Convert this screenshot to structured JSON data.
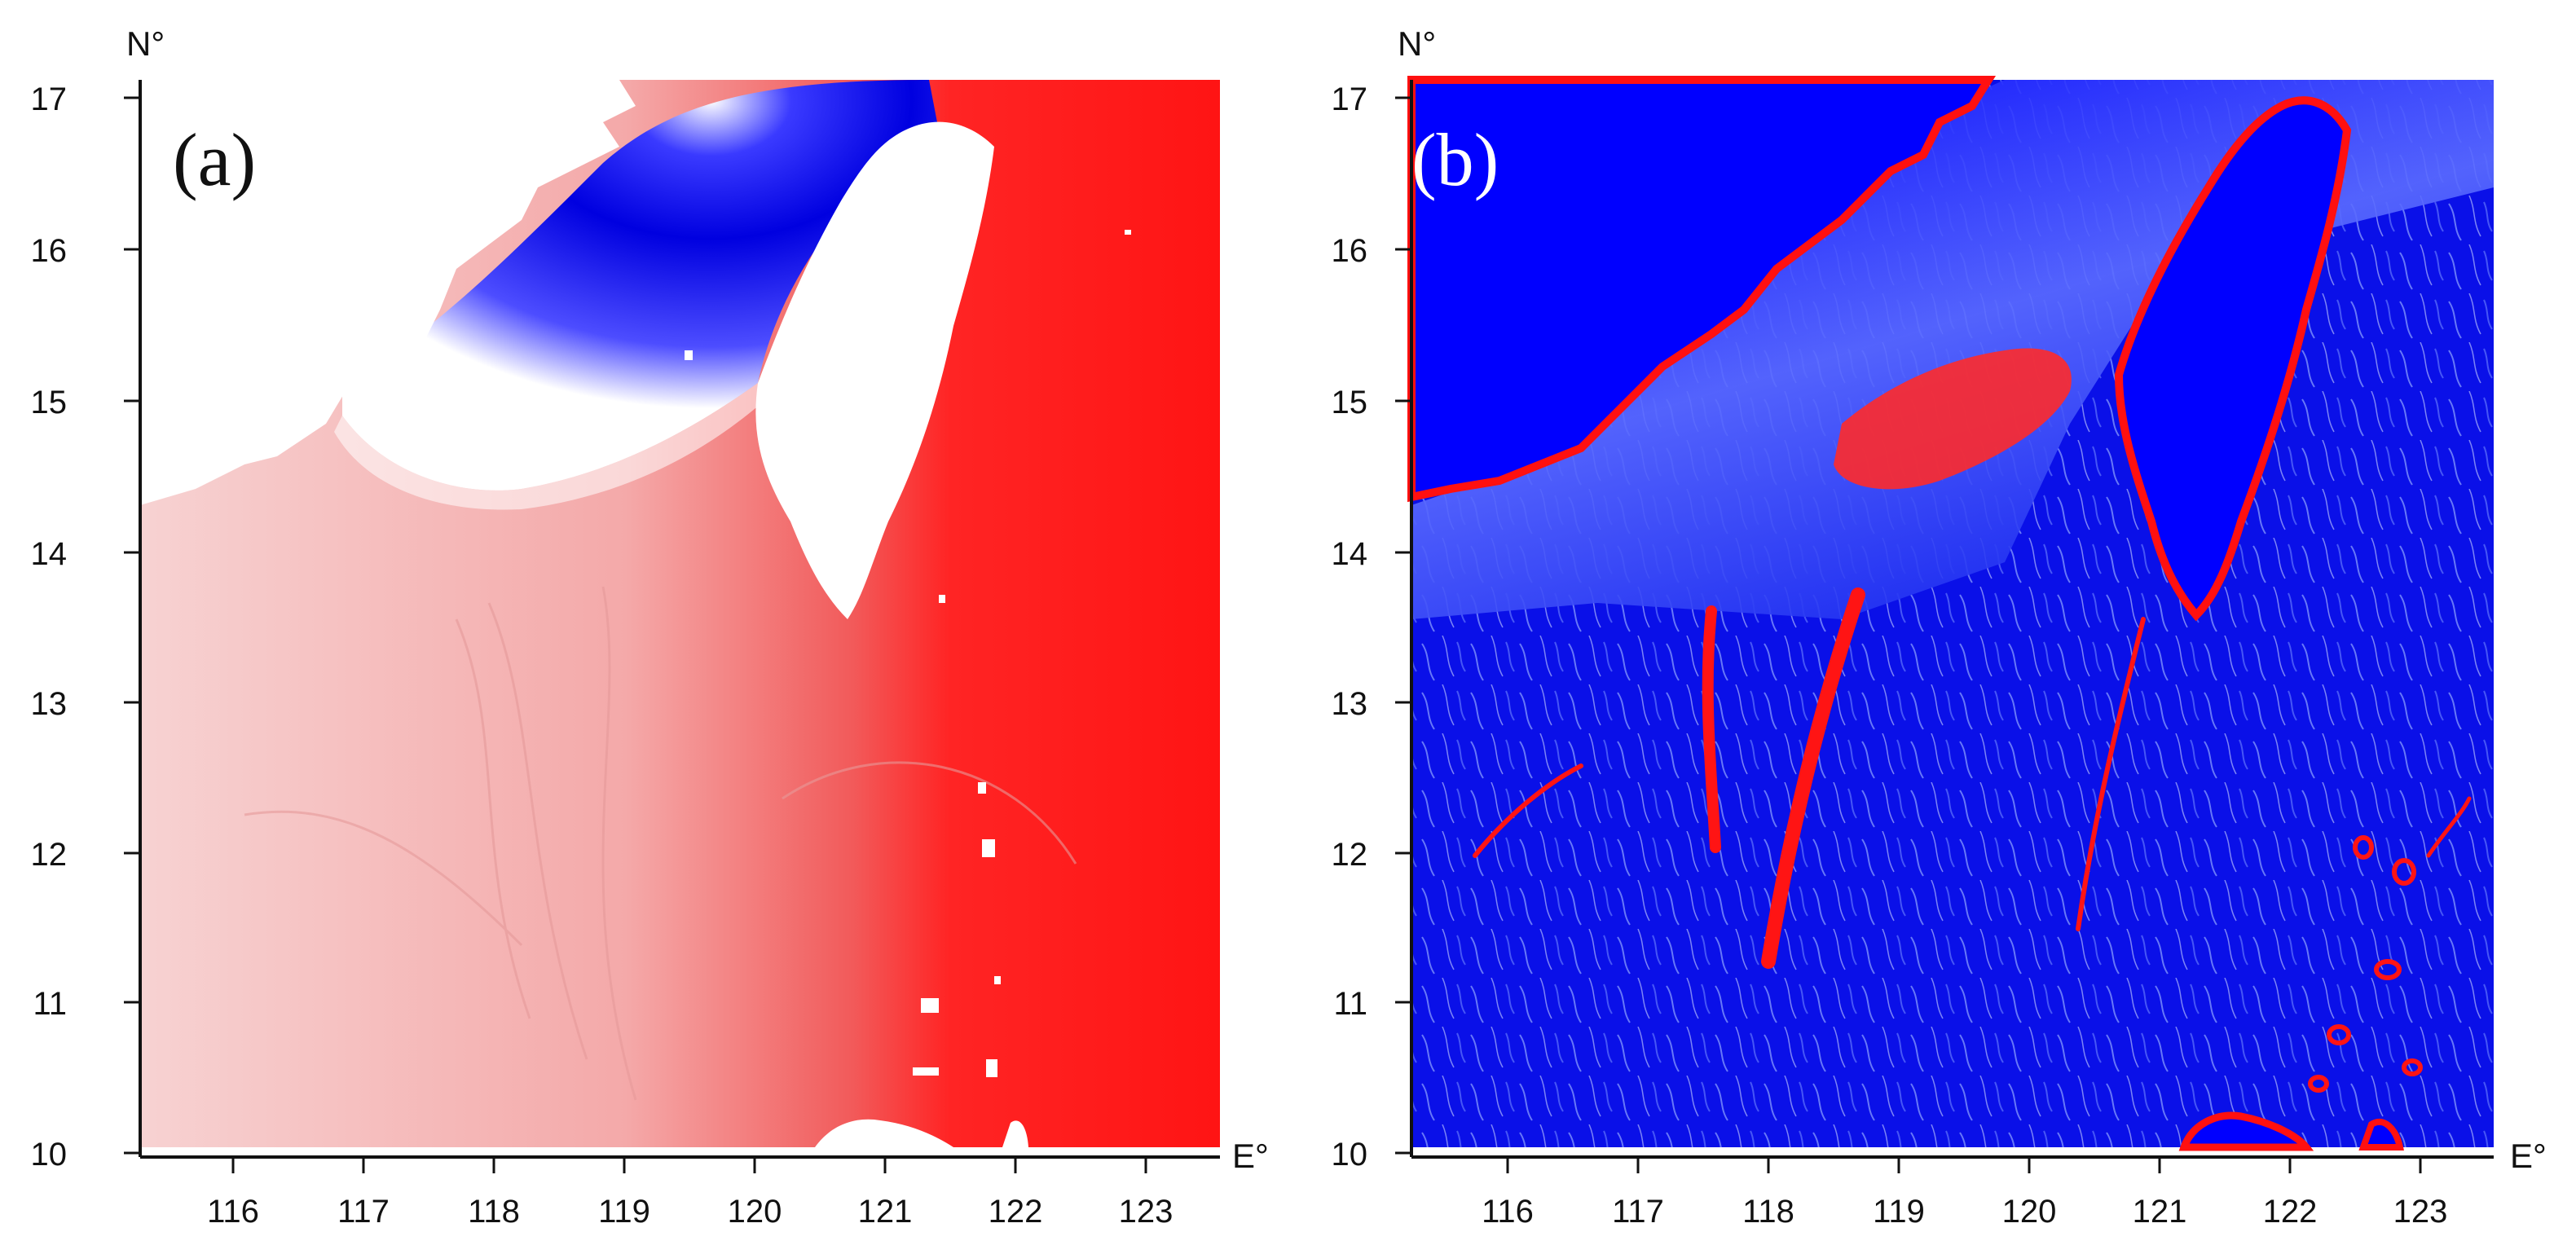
{
  "figure": {
    "panels": [
      {
        "id": "a",
        "label": "(a)",
        "label_color": "#111111",
        "x_axis_label": "E°",
        "y_axis_label": "N°",
        "x_ticks": [
          "116",
          "117",
          "118",
          "119",
          "120",
          "121",
          "122",
          "123"
        ],
        "y_ticks": [
          "17",
          "16",
          "15",
          "14",
          "13",
          "12",
          "11",
          "10"
        ],
        "colors": {
          "ocean_east": "#ff1f1f",
          "ocean_west": "#f7c8c8",
          "strait": "#0000e8",
          "land": "#ffffff"
        }
      },
      {
        "id": "b",
        "label": "(b)",
        "label_color": "#ffffff",
        "x_axis_label": "E°",
        "y_axis_label": "N°",
        "x_ticks": [
          "116",
          "117",
          "118",
          "119",
          "120",
          "121",
          "122",
          "123"
        ],
        "y_ticks": [
          "17",
          "16",
          "15",
          "14",
          "13",
          "12",
          "11",
          "10"
        ],
        "colors": {
          "background": "#0a14e6",
          "texture": "#9fb0ff",
          "highlight": "#ff1010",
          "land": "#0000ff"
        }
      }
    ]
  }
}
